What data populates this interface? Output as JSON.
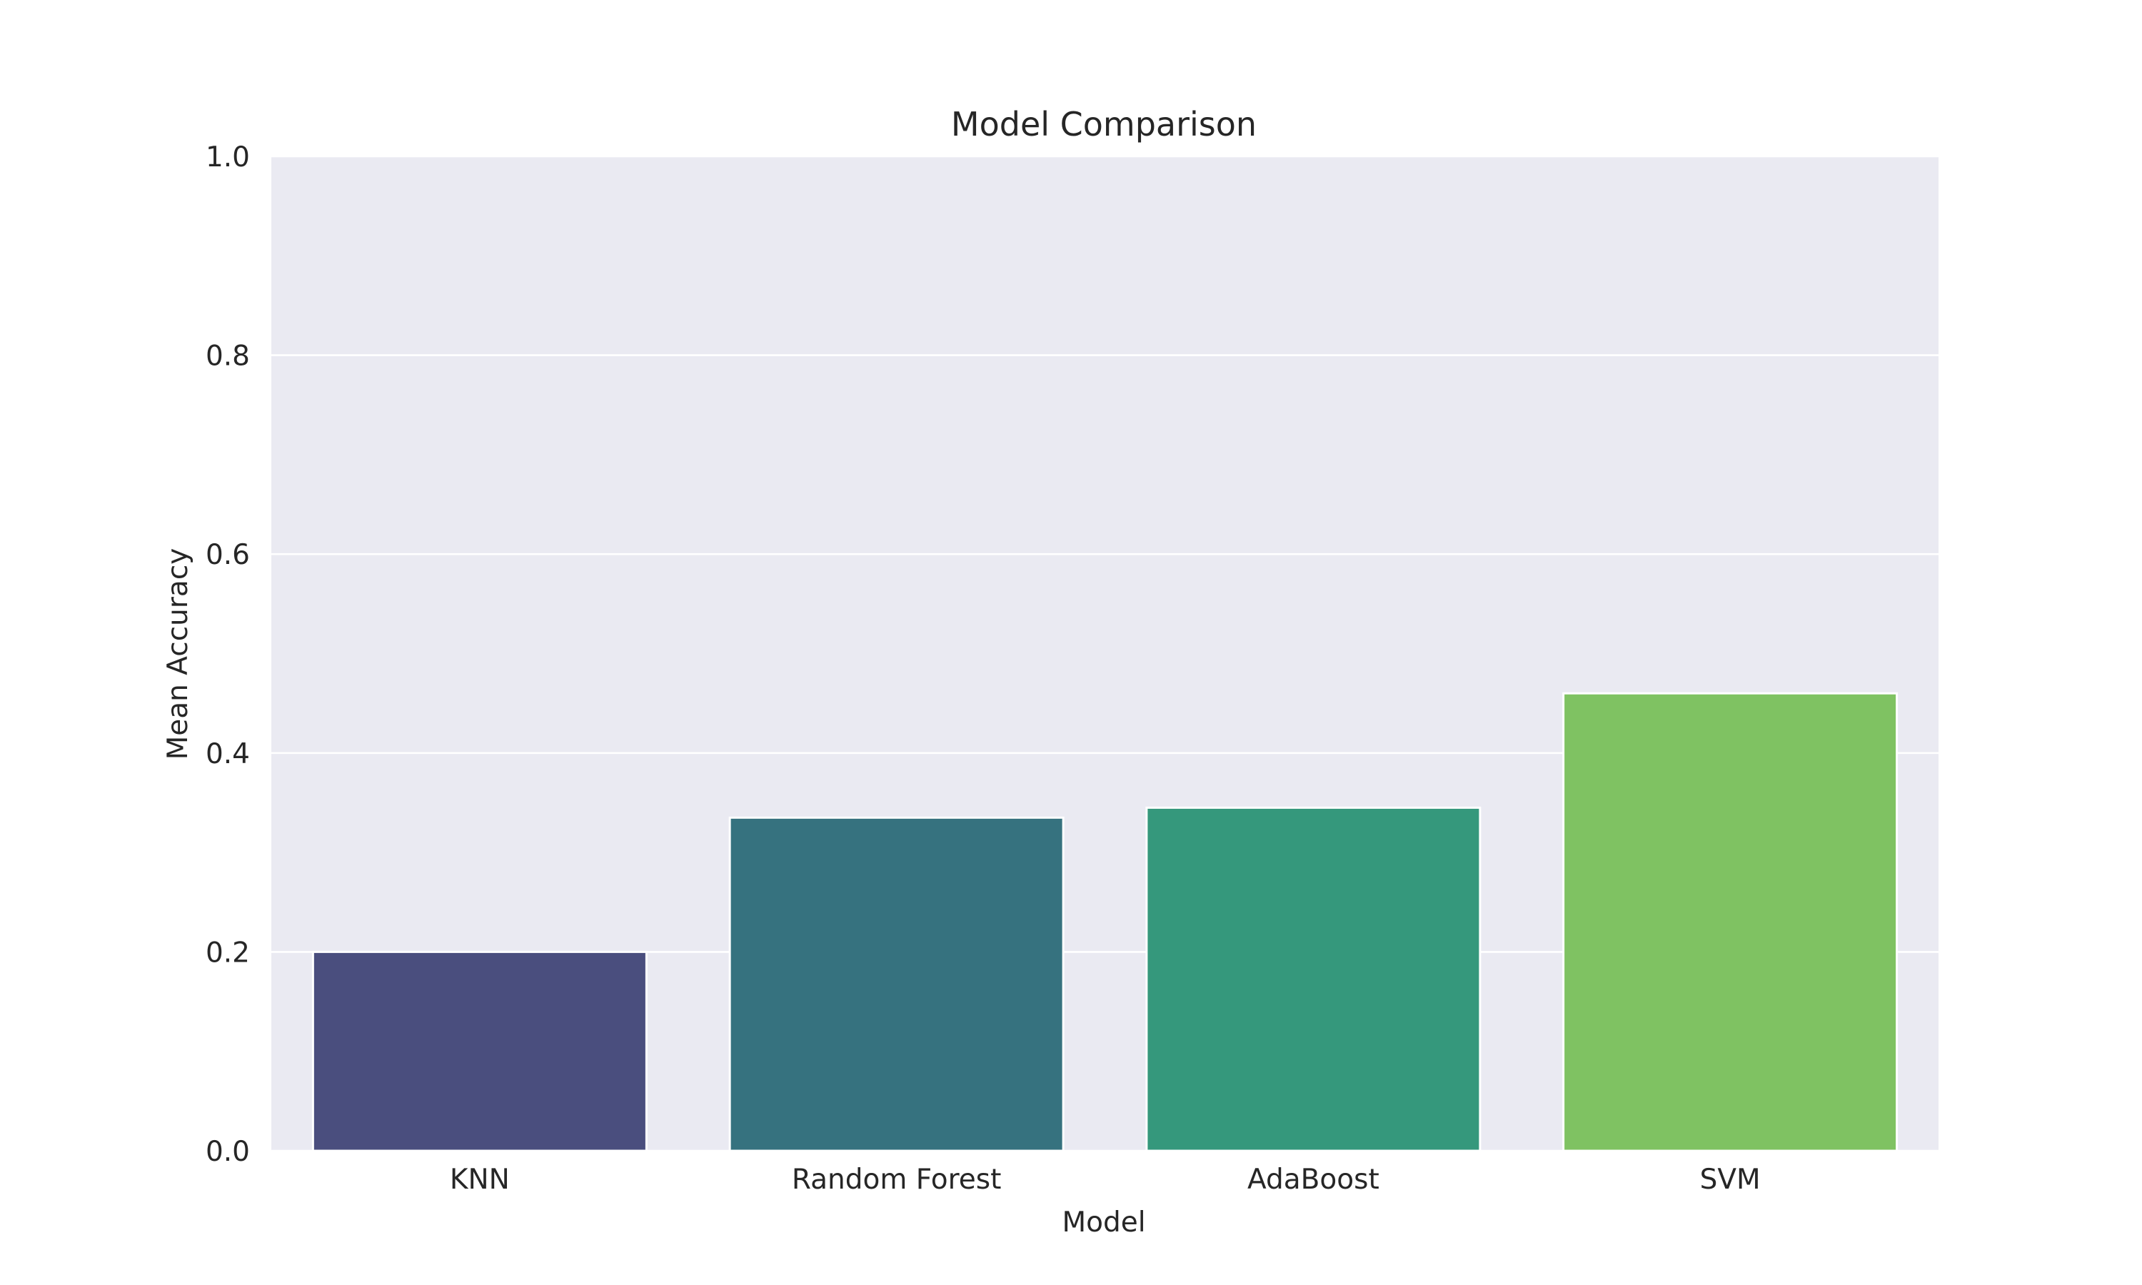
{
  "chart_data": {
    "type": "bar",
    "title": "Model Comparison",
    "xlabel": "Model",
    "ylabel": "Mean Accuracy",
    "categories": [
      "KNN",
      "Random Forest",
      "AdaBoost",
      "SVM"
    ],
    "values": [
      0.2,
      0.335,
      0.345,
      0.46
    ],
    "ylim": [
      0,
      1.0
    ],
    "yticks": [
      "0.0",
      "0.2",
      "0.4",
      "0.6",
      "0.8",
      "1.0"
    ],
    "grid": true,
    "legend": "none",
    "colors": {
      "plot_background": "#eaeaf2",
      "grid": "#ffffff",
      "bars": [
        "#4a4e7e",
        "#36727f",
        "#35987c",
        "#7fc262"
      ]
    }
  }
}
